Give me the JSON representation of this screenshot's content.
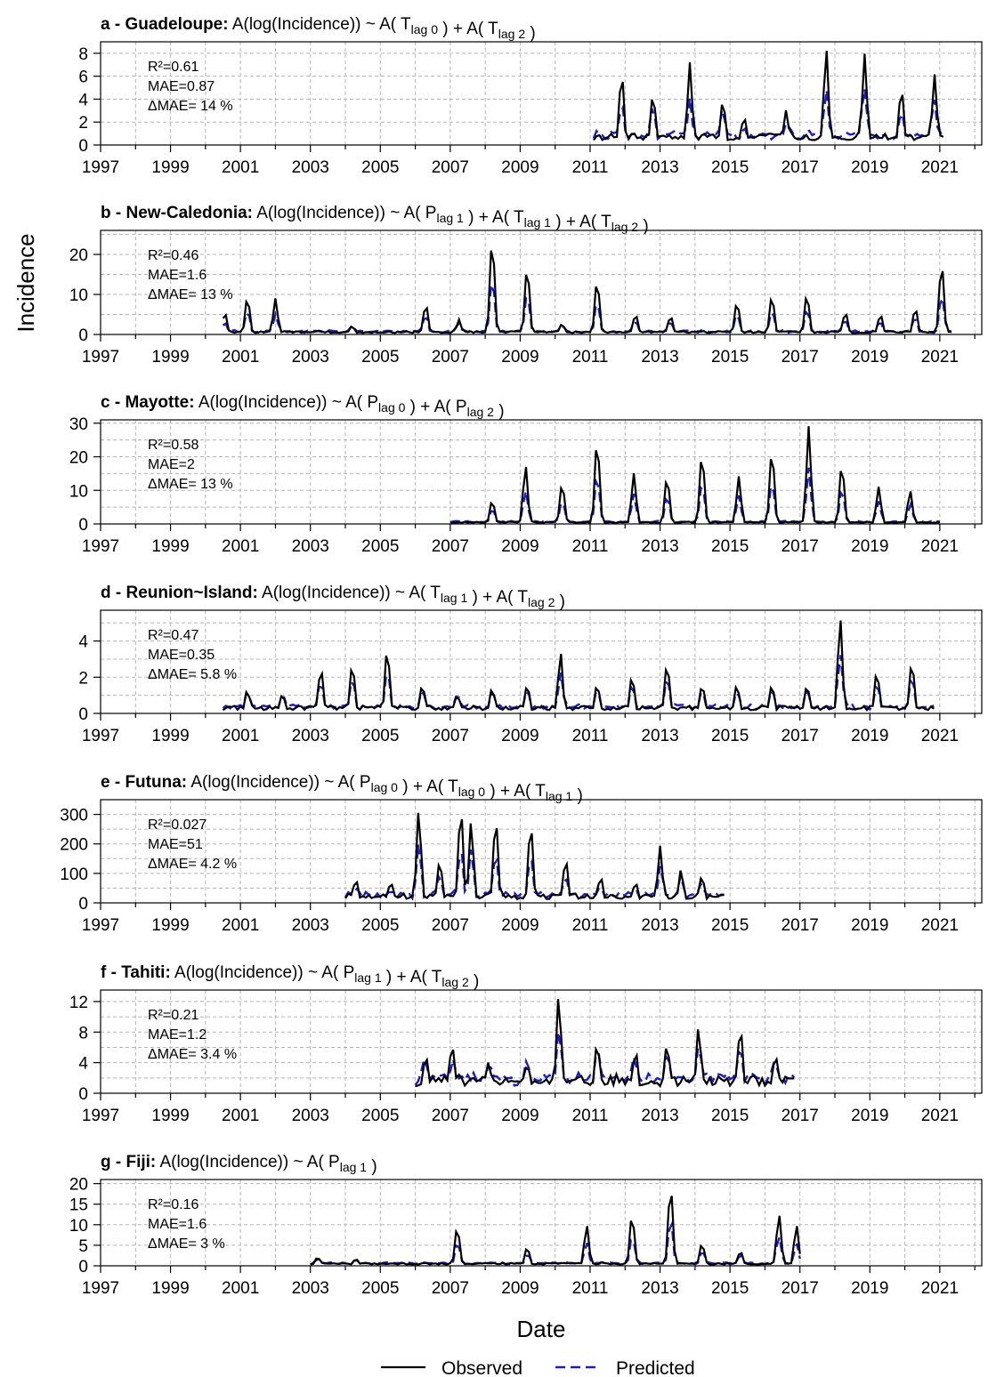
{
  "chart_data": {
    "type": "line",
    "ylabel": "Incidence",
    "xlabel": "Date",
    "x_ticks": [
      "1997",
      "1999",
      "2001",
      "2003",
      "2005",
      "2007",
      "2009",
      "2011",
      "2013",
      "2015",
      "2017",
      "2019",
      "2021"
    ],
    "xlim": [
      1997,
      2022.2
    ],
    "grid": true,
    "legend": {
      "placement": "bottom",
      "entries": [
        {
          "name": "Observed",
          "color": "#000000",
          "style": "solid"
        },
        {
          "name": "Predicted",
          "color": "#1a1adb",
          "style": "dashed"
        }
      ]
    },
    "panels": [
      {
        "letter": "a",
        "region": "Guadeloupe",
        "formula": [
          {
            "t": "A(log(Incidence)) ~ A( T"
          },
          {
            "sub": "lag 0"
          },
          {
            "t": " ) + A( T"
          },
          {
            "sub": "lag 2"
          },
          {
            "t": " )"
          }
        ],
        "stats": [
          "R²=0.61",
          "MAE=0.87",
          "ΔMAE= 14 %"
        ],
        "ylim": [
          0,
          9
        ],
        "yticks": [
          0,
          2,
          4,
          6,
          8
        ],
        "ygrid": [
          0,
          2,
          4,
          6,
          8
        ],
        "range": [
          2011.1,
          2021.1
        ],
        "period": 2.0,
        "peak_phase": 0.75,
        "peaks": [
          [
            2011.9,
            6.3
          ],
          [
            2012.8,
            4.3
          ],
          [
            2013.85,
            7.2
          ],
          [
            2014.8,
            3.8
          ],
          [
            2015.4,
            2.5
          ],
          [
            2016.6,
            3.0
          ],
          [
            2017.75,
            8.5
          ],
          [
            2018.85,
            7.8
          ],
          [
            2019.9,
            5.0
          ],
          [
            2020.85,
            6.1
          ]
        ],
        "base": 0.7
      },
      {
        "letter": "b",
        "region": "New-Caledonia",
        "formula": [
          {
            "t": "A(log(Incidence)) ~ A( P"
          },
          {
            "sub": "lag 1"
          },
          {
            "t": " )  + A( T"
          },
          {
            "sub": "lag 1"
          },
          {
            "t": " ) + A( T"
          },
          {
            "sub": "lag 2"
          },
          {
            "t": " )"
          }
        ],
        "stats": [
          "R²=0.46",
          "MAE=1.6",
          "ΔMAE= 13 %"
        ],
        "ylim": [
          0,
          26
        ],
        "yticks": [
          0,
          10,
          20
        ],
        "ygrid": [
          0,
          5,
          10,
          15,
          20,
          25
        ],
        "range": [
          2000.5,
          2021.4
        ],
        "period": 1.0,
        "peak_phase": 0.2,
        "peaks": [
          [
            2000.55,
            5.5
          ],
          [
            2001.2,
            9.2
          ],
          [
            2002.0,
            9.0
          ],
          [
            2004.2,
            2.0
          ],
          [
            2006.3,
            7.5
          ],
          [
            2007.25,
            3.5
          ],
          [
            2008.2,
            24.0
          ],
          [
            2009.2,
            17.0
          ],
          [
            2010.2,
            2.5
          ],
          [
            2011.2,
            13.5
          ],
          [
            2012.3,
            5.0
          ],
          [
            2013.3,
            4.5
          ],
          [
            2015.2,
            8.0
          ],
          [
            2016.2,
            9.5
          ],
          [
            2017.2,
            10.0
          ],
          [
            2018.3,
            5.5
          ],
          [
            2019.3,
            5.0
          ],
          [
            2020.3,
            6.5
          ],
          [
            2021.05,
            18.0
          ]
        ],
        "base": 0.6
      },
      {
        "letter": "c",
        "region": "Mayotte",
        "formula": [
          {
            "t": "A(log(Incidence)) ~  A( P"
          },
          {
            "sub": "lag 0"
          },
          {
            "t": " ) +  A( P"
          },
          {
            "sub": "lag 2"
          },
          {
            "t": " )"
          }
        ],
        "stats": [
          "R²=0.58",
          "MAE=2",
          "ΔMAE= 13 %"
        ],
        "ylim": [
          0,
          31
        ],
        "yticks": [
          0,
          10,
          20,
          30
        ],
        "ygrid": [
          0,
          5,
          10,
          15,
          20,
          25,
          30
        ],
        "range": [
          2007.0,
          2021.0
        ],
        "period": 1.0,
        "peak_phase": 0.25,
        "peaks": [
          [
            2008.2,
            7.0
          ],
          [
            2009.15,
            17.5
          ],
          [
            2010.2,
            12.0
          ],
          [
            2011.2,
            25.0
          ],
          [
            2012.25,
            15.0
          ],
          [
            2013.2,
            14.0
          ],
          [
            2014.2,
            21.0
          ],
          [
            2015.25,
            14.0
          ],
          [
            2016.2,
            22.0
          ],
          [
            2017.25,
            29.0
          ],
          [
            2018.2,
            18.0
          ],
          [
            2019.25,
            11.0
          ],
          [
            2020.15,
            10.0
          ]
        ],
        "base": 0.5
      },
      {
        "letter": "d",
        "region": "Reunion~Island",
        "formula": [
          {
            "t": "A(log(Incidence)) ~ A( T"
          },
          {
            "sub": "lag 1"
          },
          {
            "t": " ) + A( T"
          },
          {
            "sub": "lag 2"
          },
          {
            "t": " )"
          }
        ],
        "stats": [
          "R²=0.47",
          "MAE=0.35",
          "ΔMAE= 5.8 %"
        ],
        "ylim": [
          0,
          5.7
        ],
        "yticks": [
          0,
          2,
          4
        ],
        "ygrid": [
          0,
          1,
          2,
          3,
          4,
          5
        ],
        "range": [
          2000.5,
          2020.9
        ],
        "period": 1.0,
        "peak_phase": 0.2,
        "peaks": [
          [
            2001.2,
            1.2
          ],
          [
            2002.2,
            1.0
          ],
          [
            2003.3,
            2.5
          ],
          [
            2004.2,
            2.7
          ],
          [
            2005.2,
            3.5
          ],
          [
            2006.2,
            1.5
          ],
          [
            2007.2,
            1.0
          ],
          [
            2008.2,
            1.3
          ],
          [
            2009.2,
            1.5
          ],
          [
            2010.15,
            3.3
          ],
          [
            2011.2,
            1.5
          ],
          [
            2012.2,
            2.0
          ],
          [
            2013.2,
            2.7
          ],
          [
            2014.2,
            1.5
          ],
          [
            2015.2,
            1.5
          ],
          [
            2016.2,
            1.5
          ],
          [
            2017.2,
            1.5
          ],
          [
            2018.15,
            5.3
          ],
          [
            2019.2,
            2.2
          ],
          [
            2020.2,
            2.8
          ]
        ],
        "base": 0.3
      },
      {
        "letter": "e",
        "region": "Futuna",
        "formula": [
          {
            "t": "A(log(Incidence)) ~  A( P"
          },
          {
            "sub": "lag 0"
          },
          {
            "t": " ) + A( T"
          },
          {
            "sub": "lag 0"
          },
          {
            "t": " ) + A( T"
          },
          {
            "sub": "lag 1"
          },
          {
            "t": " )"
          }
        ],
        "stats": [
          "R²=0.027",
          "MAE=51",
          "ΔMAE= 4.2 %"
        ],
        "ylim": [
          0,
          350
        ],
        "yticks": [
          0,
          100,
          200,
          300
        ],
        "ygrid": [
          0,
          50,
          100,
          150,
          200,
          250,
          300,
          350
        ],
        "range": [
          2004.0,
          2014.9
        ],
        "period": 0.5,
        "peak_phase": 0.1,
        "peaks": [
          [
            2004.3,
            80
          ],
          [
            2005.3,
            70
          ],
          [
            2006.1,
            315
          ],
          [
            2006.7,
            140
          ],
          [
            2007.3,
            325
          ],
          [
            2007.6,
            270
          ],
          [
            2008.3,
            290
          ],
          [
            2009.3,
            270
          ],
          [
            2010.3,
            150
          ],
          [
            2011.3,
            90
          ],
          [
            2012.3,
            70
          ],
          [
            2013.0,
            190
          ],
          [
            2013.6,
            110
          ],
          [
            2014.2,
            90
          ]
        ],
        "base": 20
      },
      {
        "letter": "f",
        "region": "Tahiti",
        "formula": [
          {
            "t": "A(log(Incidence)) ~ A( P"
          },
          {
            "sub": "lag 1"
          },
          {
            "t": " ) + A( T"
          },
          {
            "sub": "lag 2"
          },
          {
            "t": " )"
          }
        ],
        "stats": [
          "R²=0.21",
          "MAE=1.2",
          "ΔMAE= 3.4 %"
        ],
        "ylim": [
          0,
          13.5
        ],
        "yticks": [
          0,
          4,
          8,
          12
        ],
        "ygrid": [
          0,
          2,
          4,
          6,
          8,
          10,
          12
        ],
        "range": [
          2006.0,
          2016.9
        ],
        "period": 0.5,
        "peak_phase": 0.2,
        "peaks": [
          [
            2006.3,
            5.0
          ],
          [
            2007.05,
            6.5
          ],
          [
            2008.1,
            4.0
          ],
          [
            2009.2,
            3.5
          ],
          [
            2010.1,
            12.5
          ],
          [
            2011.2,
            6.5
          ],
          [
            2012.3,
            5.5
          ],
          [
            2013.2,
            6.0
          ],
          [
            2014.1,
            8.5
          ],
          [
            2015.3,
            8.5
          ],
          [
            2016.3,
            5.0
          ]
        ],
        "base": 1.5
      },
      {
        "letter": "g",
        "region": "Fiji",
        "formula": [
          {
            "t": "A(log(Incidence)) ~   A( P"
          },
          {
            "sub": "lag 1"
          },
          {
            "t": " )"
          }
        ],
        "stats": [
          "R²=0.16",
          "MAE=1.6",
          "ΔMAE= 3 %"
        ],
        "ylim": [
          0,
          21
        ],
        "yticks": [
          0,
          5,
          10,
          15,
          20
        ],
        "ygrid": [
          0,
          5,
          10,
          15,
          20
        ],
        "range": [
          2003.0,
          2017.0
        ],
        "period": 1.0,
        "peak_phase": 0.3,
        "peaks": [
          [
            2003.2,
            2.0
          ],
          [
            2004.3,
            1.5
          ],
          [
            2007.2,
            9.5
          ],
          [
            2009.2,
            4.5
          ],
          [
            2010.9,
            10.0
          ],
          [
            2012.2,
            12.5
          ],
          [
            2013.3,
            19.5
          ],
          [
            2014.2,
            5.5
          ],
          [
            2015.3,
            3.5
          ],
          [
            2016.4,
            12.5
          ],
          [
            2016.9,
            10.0
          ]
        ],
        "base": 0.5
      }
    ]
  }
}
